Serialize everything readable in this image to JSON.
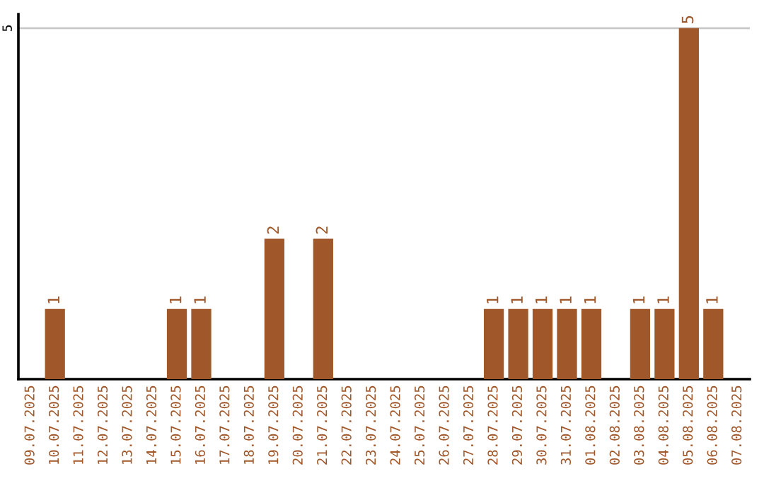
{
  "chart_data": {
    "type": "bar",
    "categories": [
      "09.07.2025",
      "10.07.2025",
      "11.07.2025",
      "12.07.2025",
      "13.07.2025",
      "14.07.2025",
      "15.07.2025",
      "16.07.2025",
      "17.07.2025",
      "18.07.2025",
      "19.07.2025",
      "20.07.2025",
      "21.07.2025",
      "22.07.2025",
      "23.07.2025",
      "24.07.2025",
      "25.07.2025",
      "26.07.2025",
      "27.07.2025",
      "28.07.2025",
      "29.07.2025",
      "30.07.2025",
      "31.07.2025",
      "01.08.2025",
      "02.08.2025",
      "03.08.2025",
      "04.08.2025",
      "05.08.2025",
      "06.08.2025",
      "07.08.2025"
    ],
    "values": [
      0,
      1,
      0,
      0,
      0,
      0,
      1,
      1,
      0,
      0,
      2,
      0,
      2,
      0,
      0,
      0,
      0,
      0,
      0,
      1,
      1,
      1,
      1,
      1,
      0,
      1,
      1,
      5,
      1,
      0
    ],
    "value_labels": [
      null,
      "1",
      null,
      null,
      null,
      null,
      "1",
      "1",
      null,
      null,
      "2",
      null,
      "2",
      null,
      null,
      null,
      null,
      null,
      null,
      "1",
      "1",
      "1",
      "1",
      "1",
      null,
      "1",
      "1",
      "5",
      "1",
      null
    ],
    "color": "#a0572a",
    "ylim": [
      0,
      5.2
    ],
    "yticks": [
      5
    ],
    "grid": "y"
  }
}
